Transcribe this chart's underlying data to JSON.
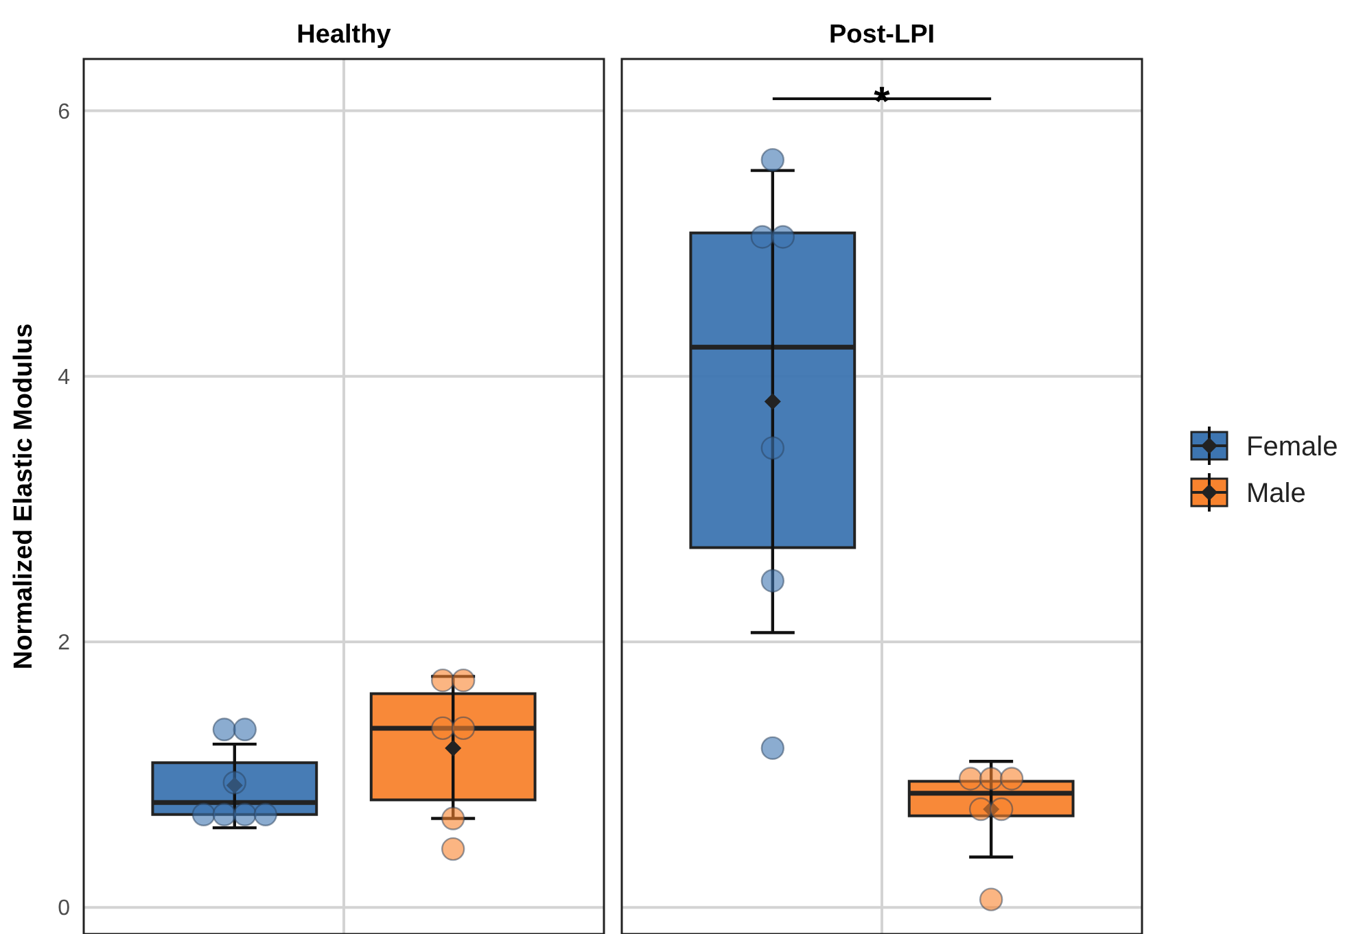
{
  "chart_data": {
    "type": "box",
    "ylabel": "Normalized Elastic Modulus",
    "categories": [
      "Healthy",
      "Post-LPI"
    ],
    "ylim": [
      -0.2,
      6.39
    ],
    "yticks": [
      0,
      2,
      4,
      6
    ],
    "grid": true,
    "legend": "right",
    "marker": "circle",
    "annotations": [
      "*"
    ],
    "series": [
      {
        "name": "Female",
        "color": "#3d75b1",
        "boxes": [
          {
            "low": 0.6,
            "q1": 0.7,
            "median": 0.79,
            "q3": 1.09,
            "high": 1.23,
            "mean": 0.92,
            "outliers": [
              1.34,
              1.34,
              0.94,
              0.7,
              0.7,
              0.7,
              0.7
            ]
          },
          {
            "low": 2.07,
            "q1": 2.71,
            "median": 4.22,
            "q3": 5.08,
            "high": 5.55,
            "mean": 3.81,
            "outliers": [
              5.63,
              5.05,
              5.05,
              3.46,
              2.46,
              1.2
            ]
          }
        ]
      },
      {
        "name": "Male",
        "color": "#f8832e",
        "boxes": [
          {
            "low": 0.67,
            "q1": 0.81,
            "median": 1.35,
            "q3": 1.61,
            "high": 1.74,
            "mean": 1.2,
            "outliers": [
              1.71,
              1.71,
              1.35,
              1.35,
              0.67,
              0.44
            ]
          },
          {
            "low": 0.38,
            "q1": 0.69,
            "median": 0.86,
            "q3": 0.95,
            "high": 1.1,
            "mean": 0.74,
            "outliers": [
              0.97,
              0.97,
              0.97,
              0.74,
              0.74,
              0.06
            ]
          }
        ]
      }
    ]
  }
}
